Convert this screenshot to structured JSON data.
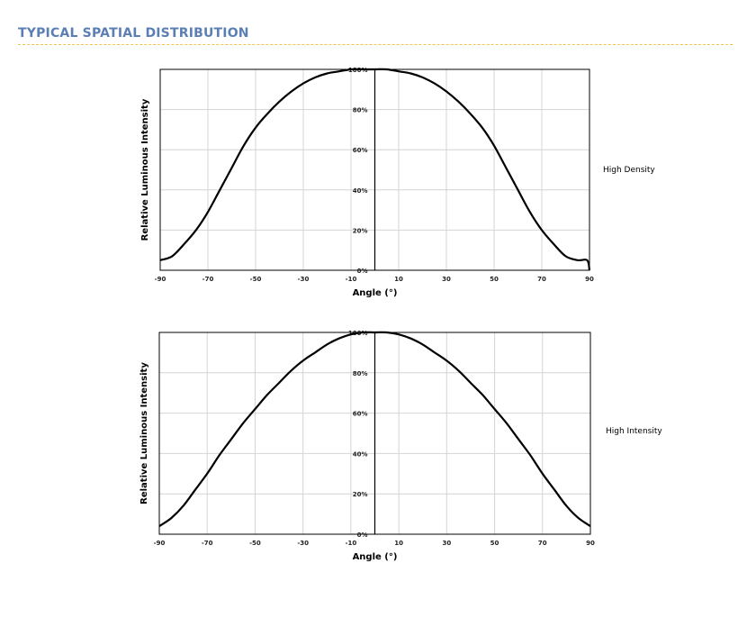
{
  "section": {
    "title": "TYPICAL SPATIAL DISTRIBUTION"
  },
  "chart_data": [
    {
      "type": "line",
      "xlabel": "Angle (°)",
      "ylabel": "Relative Luminous Intensity",
      "xlim": [
        -90,
        90
      ],
      "ylim": [
        0,
        100
      ],
      "x_ticks": [
        "-90",
        "-70",
        "-50",
        "-30",
        "-10",
        "10",
        "30",
        "50",
        "70",
        "90"
      ],
      "y_ticks": [
        "0%",
        "20%",
        "40%",
        "60%",
        "80%",
        "100%"
      ],
      "grid": true,
      "legend_position": "right",
      "series": [
        {
          "name": "High Density",
          "x": [
            -90,
            -85,
            -80,
            -75,
            -70,
            -65,
            -60,
            -55,
            -50,
            -45,
            -40,
            -35,
            -30,
            -25,
            -20,
            -15,
            -10,
            -5,
            0,
            5,
            10,
            15,
            20,
            25,
            30,
            35,
            40,
            45,
            50,
            55,
            60,
            65,
            70,
            75,
            80,
            85,
            89,
            90
          ],
          "y": [
            5,
            7,
            13,
            20,
            29,
            40,
            51,
            62,
            71,
            78,
            84,
            89,
            93,
            96,
            98,
            99,
            100,
            100,
            100,
            100,
            99,
            98,
            96,
            93,
            89,
            84,
            78,
            71,
            62,
            51,
            40,
            29,
            20,
            13,
            7,
            5,
            5,
            0
          ]
        }
      ]
    },
    {
      "type": "line",
      "xlabel": "Angle (°)",
      "ylabel": "Relative Luminous Intensity",
      "xlim": [
        -90,
        90
      ],
      "ylim": [
        0,
        100
      ],
      "x_ticks": [
        "-90",
        "-70",
        "-50",
        "-30",
        "-10",
        "10",
        "30",
        "50",
        "70",
        "90"
      ],
      "y_ticks": [
        "0%",
        "20%",
        "40%",
        "60%",
        "80%",
        "100%"
      ],
      "grid": true,
      "legend_position": "right",
      "series": [
        {
          "name": "High Intensity",
          "x": [
            -90,
            -85,
            -80,
            -75,
            -70,
            -65,
            -60,
            -55,
            -50,
            -45,
            -40,
            -35,
            -30,
            -25,
            -20,
            -15,
            -10,
            -5,
            0,
            5,
            10,
            15,
            20,
            25,
            30,
            35,
            40,
            45,
            50,
            55,
            60,
            65,
            70,
            75,
            80,
            85,
            90
          ],
          "y": [
            4,
            8,
            14,
            22,
            30,
            39,
            47,
            55,
            62,
            69,
            75,
            81,
            86,
            90,
            94,
            97,
            99,
            100,
            100,
            100,
            99,
            97,
            94,
            90,
            86,
            81,
            75,
            69,
            62,
            55,
            47,
            39,
            30,
            22,
            14,
            8,
            4
          ]
        }
      ]
    }
  ]
}
